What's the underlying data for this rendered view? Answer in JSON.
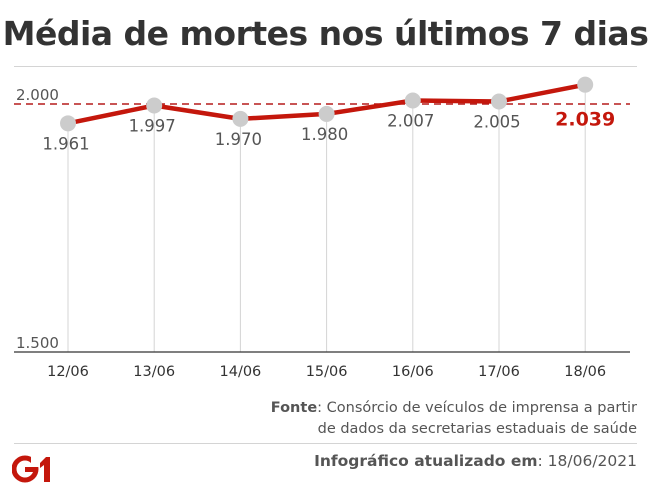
{
  "title": "Média de mortes nos últimos 7 dias",
  "chart_data": {
    "type": "line",
    "categories": [
      "12/06",
      "13/06",
      "14/06",
      "15/06",
      "16/06",
      "17/06",
      "18/06"
    ],
    "values": [
      1961,
      1997,
      1970,
      1980,
      2007,
      2005,
      2039
    ],
    "value_labels": [
      "1.961",
      "1.997",
      "1.970",
      "1.980",
      "2.007",
      "2.005",
      "2.039"
    ],
    "y_ticks": [
      {
        "value": 1500,
        "label": "1.500"
      },
      {
        "value": 2000,
        "label": "2.000"
      }
    ],
    "reference_line": 2000,
    "ylim": [
      1500,
      2060
    ],
    "highlight_last": true,
    "colors": {
      "line": "#c4170c",
      "point": "#cccccc",
      "text": "#555555",
      "grid": "#d4d4d4",
      "highlight": "#c4170c"
    }
  },
  "source": {
    "label": "Fonte",
    "text": ": Consórcio de veículos de imprensa a partir",
    "text2": "de dados da secretarias estaduais de saúde"
  },
  "footer": {
    "logo_text": "G1",
    "updated_label": "Infográfico atualizado em",
    "updated_value": ": 18/06/2021"
  }
}
